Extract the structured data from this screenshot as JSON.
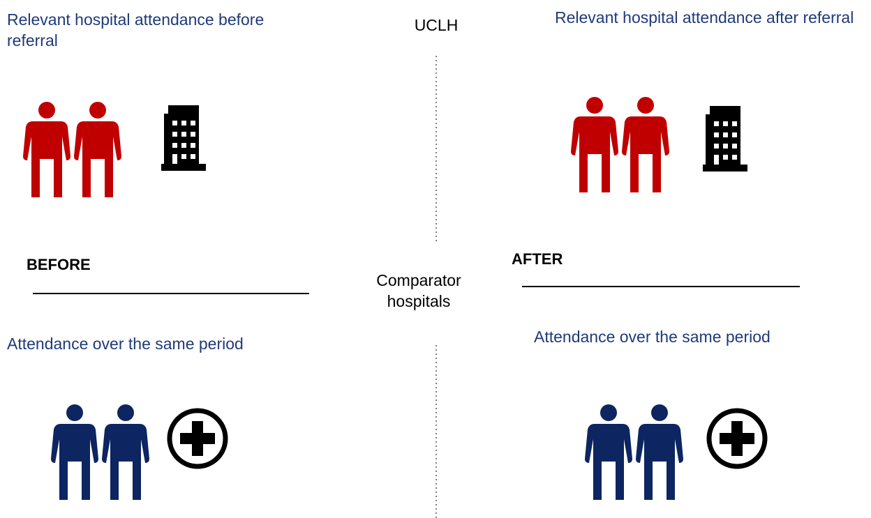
{
  "left": {
    "top_title": "Relevant hospital attendance before referral",
    "label": "BEFORE",
    "bottom_title": "Attendance over the same period"
  },
  "center": {
    "top_label": "UCLH",
    "bottom_label": "Comparator hospitals"
  },
  "right": {
    "top_title": "Relevant hospital attendance after referral",
    "label": "AFTER",
    "bottom_title": "Attendance over the same period"
  }
}
